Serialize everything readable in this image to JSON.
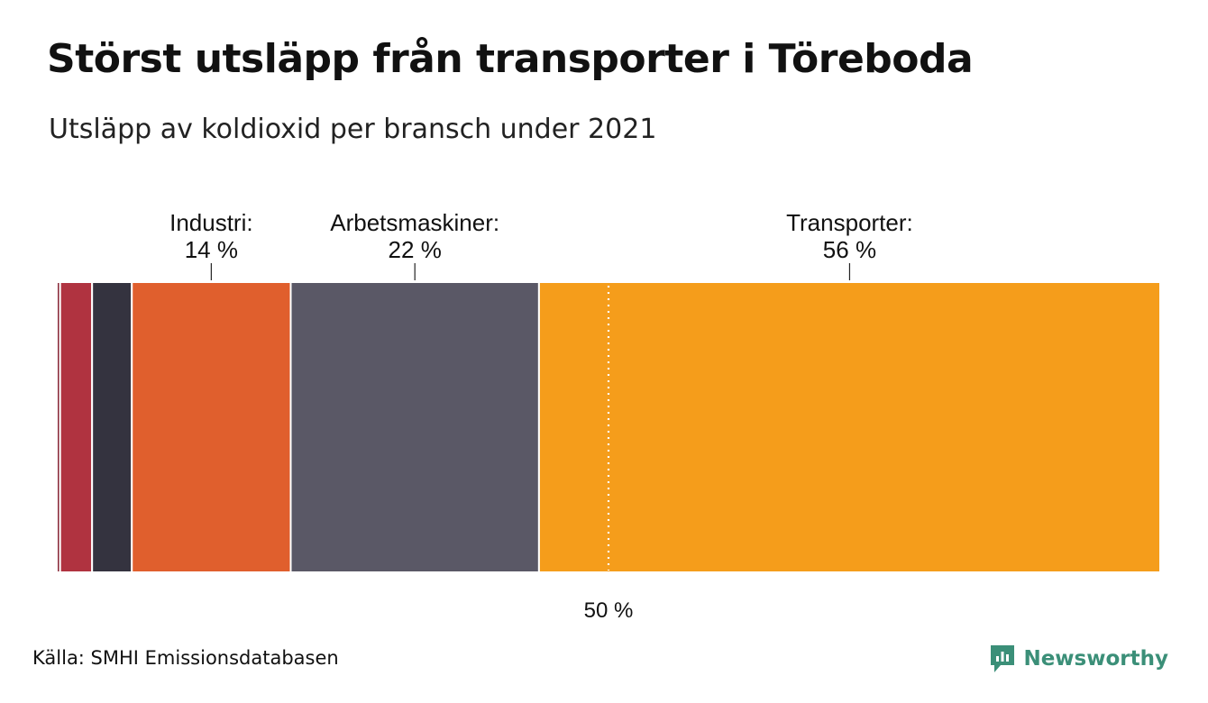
{
  "title": "Störst utsläpp från transporter i Töreboda",
  "subtitle": "Utsläpp av koldioxid per bransch under 2021",
  "source": "Källa: SMHI Emissionsdatabasen",
  "brand": {
    "name": "Newsworthy",
    "icon": "newsworthy-logo-icon",
    "color": "#3b8f78"
  },
  "chart_data": {
    "type": "bar",
    "orientation": "stacked-100",
    "unit": "%",
    "xlim": [
      0,
      100
    ],
    "segments": [
      {
        "value": 0.3,
        "color": "#8a2b3a"
      },
      {
        "value": 2.9,
        "color": "#b03340"
      },
      {
        "value": 3.6,
        "color": "#34333f"
      },
      {
        "name": "Industri",
        "label": "Industri:",
        "value_label": "14 %",
        "value": 14.4,
        "color": "#e05f2d"
      },
      {
        "name": "Arbetsmaskiner",
        "label": "Arbetsmaskiner:",
        "value_label": "22 %",
        "value": 22.5,
        "color": "#5a5866"
      },
      {
        "name": "Transporter",
        "label": "Transporter:",
        "value_label": "56 %",
        "value": 56.3,
        "color": "#f59d1b"
      }
    ],
    "reference_line": {
      "value": 50,
      "label": "50 %"
    }
  }
}
